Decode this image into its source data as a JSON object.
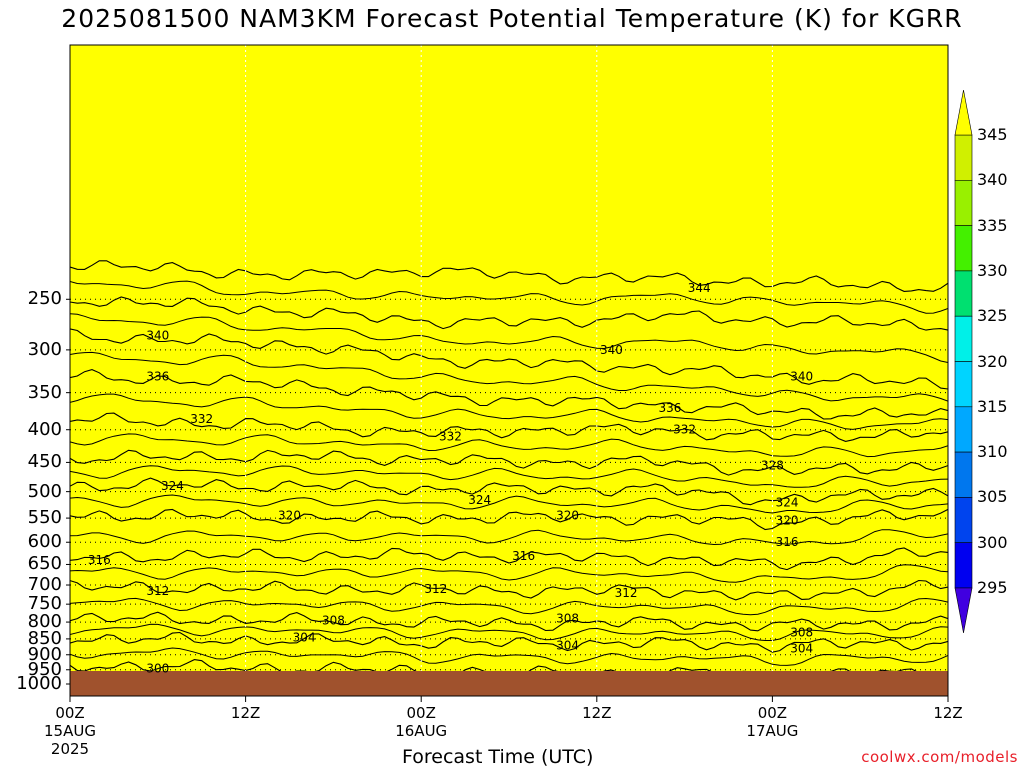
{
  "title": "2025081500 NAM3KM Forecast Potential Temperature (K) for KGRR",
  "credit": "coolwx.com/models",
  "chart_data": {
    "type": "heatmap",
    "title": "2025081500 NAM3KM Forecast Potential Temperature (K) for KGRR",
    "xlabel": "Forecast Time (UTC)",
    "ylabel": "",
    "x_range_hours": [
      0,
      60
    ],
    "y_range_hPa": [
      1000,
      100
    ],
    "y_scale": "log",
    "y_ticks": [
      "250",
      "300",
      "350",
      "400",
      "450",
      "500",
      "550",
      "600",
      "650",
      "700",
      "750",
      "800",
      "850",
      "900",
      "950",
      "1000"
    ],
    "x_ticks": [
      {
        "hour": 0,
        "label": "00Z",
        "date": "15AUG",
        "year": "2025"
      },
      {
        "hour": 12,
        "label": "12Z",
        "date": "",
        "year": ""
      },
      {
        "hour": 24,
        "label": "00Z",
        "date": "16AUG",
        "year": ""
      },
      {
        "hour": 36,
        "label": "12Z",
        "date": "",
        "year": ""
      },
      {
        "hour": 48,
        "label": "00Z",
        "date": "17AUG",
        "year": ""
      },
      {
        "hour": 60,
        "label": "12Z",
        "date": "",
        "year": ""
      }
    ],
    "grid": true,
    "contour_interval_K": 2,
    "contour_labels": [
      {
        "hour": 6,
        "p": 285,
        "label": "340"
      },
      {
        "hour": 6,
        "p": 330,
        "label": "336"
      },
      {
        "hour": 9,
        "p": 385,
        "label": "332"
      },
      {
        "hour": 7,
        "p": 490,
        "label": "324"
      },
      {
        "hour": 15,
        "p": 545,
        "label": "320"
      },
      {
        "hour": 2,
        "p": 640,
        "label": "316"
      },
      {
        "hour": 6,
        "p": 715,
        "label": "312"
      },
      {
        "hour": 18,
        "p": 795,
        "label": "308"
      },
      {
        "hour": 16,
        "p": 845,
        "label": "304"
      },
      {
        "hour": 6,
        "p": 945,
        "label": "300"
      },
      {
        "hour": 26,
        "p": 410,
        "label": "332"
      },
      {
        "hour": 28,
        "p": 515,
        "label": "324"
      },
      {
        "hour": 25,
        "p": 710,
        "label": "312"
      },
      {
        "hour": 37,
        "p": 300,
        "label": "340"
      },
      {
        "hour": 34,
        "p": 545,
        "label": "320"
      },
      {
        "hour": 31,
        "p": 630,
        "label": "316"
      },
      {
        "hour": 34,
        "p": 790,
        "label": "308"
      },
      {
        "hour": 34,
        "p": 870,
        "label": "304"
      },
      {
        "hour": 43,
        "p": 240,
        "label": "344"
      },
      {
        "hour": 41,
        "p": 370,
        "label": "336"
      },
      {
        "hour": 42,
        "p": 400,
        "label": "332"
      },
      {
        "hour": 38,
        "p": 720,
        "label": "312"
      },
      {
        "hour": 48,
        "p": 455,
        "label": "328"
      },
      {
        "hour": 49,
        "p": 600,
        "label": "316"
      },
      {
        "hour": 50,
        "p": 330,
        "label": "340"
      },
      {
        "hour": 49,
        "p": 520,
        "label": "324"
      },
      {
        "hour": 49,
        "p": 555,
        "label": "320"
      },
      {
        "hour": 50,
        "p": 830,
        "label": "308"
      },
      {
        "hour": 50,
        "p": 880,
        "label": "304"
      }
    ],
    "isentropes": [
      {
        "theta": 300,
        "p": [
          935,
          940,
          945,
          955,
          960,
          960,
          965,
          960
        ]
      },
      {
        "theta": 304,
        "p": [
          850,
          852,
          855,
          860,
          865,
          862,
          870,
          860
        ]
      },
      {
        "theta": 308,
        "p": [
          790,
          792,
          795,
          800,
          805,
          800,
          810,
          800
        ]
      },
      {
        "theta": 312,
        "p": [
          705,
          708,
          710,
          712,
          715,
          712,
          730,
          700
        ]
      },
      {
        "theta": 316,
        "p": [
          635,
          630,
          630,
          628,
          632,
          635,
          650,
          620
        ]
      },
      {
        "theta": 320,
        "p": [
          545,
          545,
          550,
          550,
          548,
          550,
          560,
          540
        ]
      },
      {
        "theta": 324,
        "p": [
          490,
          488,
          490,
          495,
          495,
          495,
          515,
          500
        ]
      },
      {
        "theta": 328,
        "p": [
          445,
          440,
          440,
          445,
          450,
          448,
          465,
          455
        ]
      },
      {
        "theta": 332,
        "p": [
          385,
          390,
          395,
          405,
          400,
          400,
          410,
          405
        ]
      },
      {
        "theta": 336,
        "p": [
          330,
          335,
          340,
          355,
          360,
          365,
          375,
          380
        ]
      },
      {
        "theta": 340,
        "p": [
          285,
          290,
          295,
          310,
          315,
          320,
          330,
          340
        ]
      },
      {
        "theta": 344,
        "p": [
          250,
          255,
          262,
          270,
          272,
          265,
          270,
          275
        ]
      },
      {
        "theta": 348,
        "p": [
          220,
          225,
          230,
          225,
          230,
          232,
          235,
          240
        ]
      }
    ],
    "isentrope_hours": [
      0,
      8,
      16,
      24,
      32,
      40,
      48,
      60
    ],
    "color_levels": [
      295,
      300,
      305,
      310,
      315,
      320,
      325,
      330,
      335,
      340,
      345
    ],
    "colors": [
      "#4000e0",
      "#0000f0",
      "#0044ee",
      "#0077ee",
      "#00a8ff",
      "#00d4ff",
      "#00f0e8",
      "#00e070",
      "#44f000",
      "#99f000",
      "#d0f000",
      "#ffff00"
    ],
    "surface_color": "#a0522d"
  },
  "xaxis_title": "Forecast Time (UTC)",
  "colorbar_labels": [
    "345",
    "340",
    "335",
    "330",
    "325",
    "320",
    "315",
    "310",
    "305",
    "300",
    "295"
  ]
}
